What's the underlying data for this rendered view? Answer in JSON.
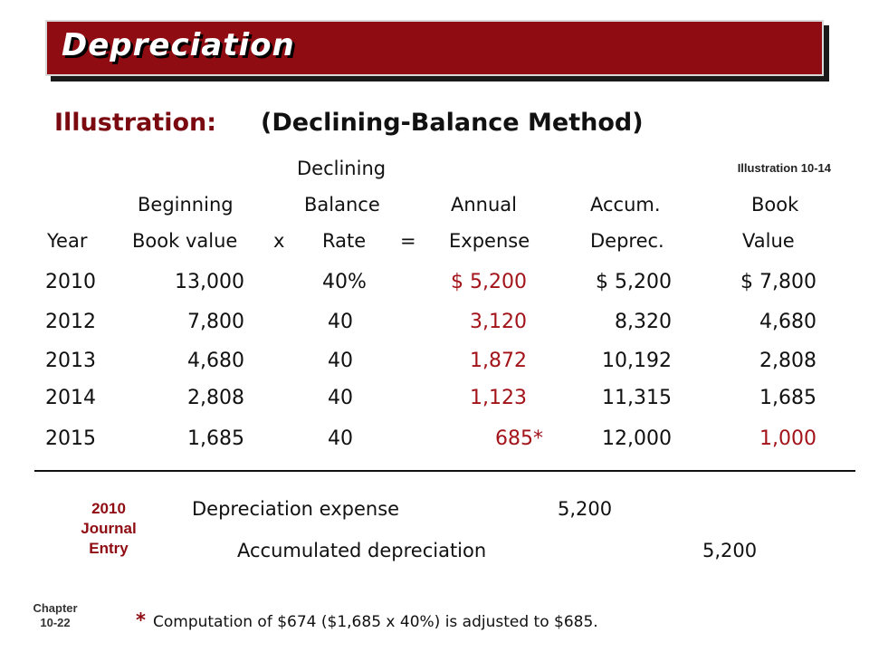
{
  "slide": {
    "title": "Depreciation",
    "illustration_label": "Illustration:",
    "illustration_method": "(Declining-Balance Method)",
    "illustration_ref": "Illustration 10-14",
    "chapter_label": "Chapter",
    "chapter_page": "10-22"
  },
  "table": {
    "headers": {
      "row1_declining": "Declining",
      "beginning": "Beginning",
      "balance": "Balance",
      "annual": "Annual",
      "accum": "Accum.",
      "book": "Book",
      "year": "Year",
      "book_value": "Book value",
      "times": "x",
      "rate": "Rate",
      "equals": "=",
      "expense": "Expense",
      "deprec": "Deprec.",
      "value": "Value"
    },
    "rows": [
      {
        "year": "2010",
        "begin": "13,000",
        "rate": "40%",
        "expense": "$ 5,200",
        "accum": "$ 5,200",
        "book": "$ 7,800"
      },
      {
        "year": "2012",
        "begin": "7,800",
        "rate": "40",
        "expense": "3,120",
        "accum": "8,320",
        "book": "4,680"
      },
      {
        "year": "2013",
        "begin": "4,680",
        "rate": "40",
        "expense": "1,872",
        "accum": "10,192",
        "book": "2,808"
      },
      {
        "year": "2014",
        "begin": "2,808",
        "rate": "40",
        "expense": "1,123",
        "accum": "11,315",
        "book": "1,685"
      },
      {
        "year": "2015",
        "begin": "1,685",
        "rate": "40",
        "expense": "685*",
        "accum": "12,000",
        "book": "1,000"
      }
    ]
  },
  "journal": {
    "label_year": "2010",
    "label_journal": "Journal",
    "label_entry": "Entry",
    "debit_account": "Depreciation expense",
    "debit_amount": "5,200",
    "credit_account": "Accumulated depreciation",
    "credit_amount": "5,200"
  },
  "footnote": {
    "star": "*",
    "text": "Computation of $674 ($1,685 x 40%) is adjusted to $685."
  },
  "colors": {
    "title_bar": "#8e0c12",
    "accent_red": "#a3141a"
  }
}
